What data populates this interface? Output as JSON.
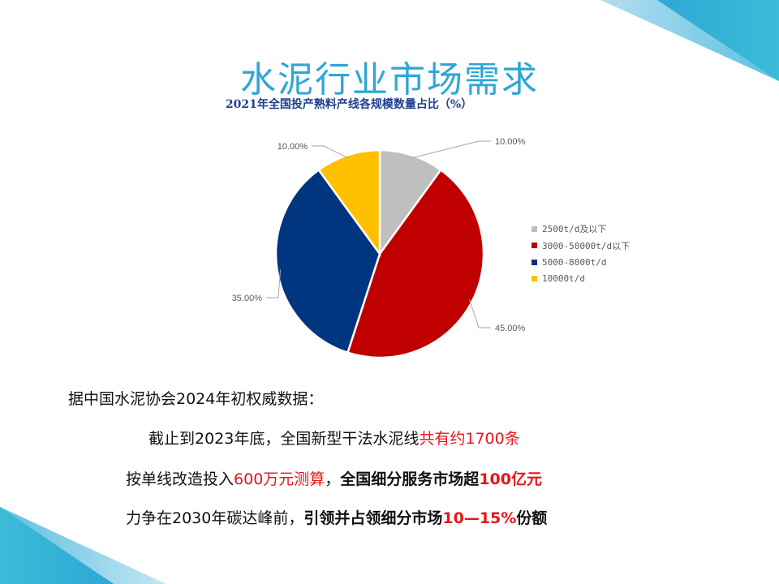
{
  "slide": {
    "title": "水泥行业市场需求",
    "accent_color": "#2ea6d6"
  },
  "chart_data": {
    "type": "pie",
    "title": "2021年全国投产熟料产线各规模数量占比（%）",
    "start": "top",
    "direction": "clockwise",
    "legend_position": "right",
    "slices": [
      {
        "label": "2500t/d及以下",
        "value": 10.0,
        "data_label": "10.00%",
        "color": "#bfbfbf"
      },
      {
        "label": "3000-50000t/d以下",
        "value": 45.0,
        "data_label": "45.00%",
        "color": "#c00000"
      },
      {
        "label": "5000-8000t/d",
        "value": 35.0,
        "data_label": "35.00%",
        "color": "#003580"
      },
      {
        "label": "10000t/d",
        "value": 10.0,
        "data_label": "10.00%",
        "color": "#ffc000"
      }
    ]
  },
  "body": {
    "intro": "据中国水泥协会2024年初权威数据：",
    "line1": [
      {
        "text": "截止到2023年底，全国新型干法水泥线",
        "style": "normal"
      },
      {
        "text": "共有约1700条",
        "style": "red"
      }
    ],
    "line2": [
      {
        "text": "按单线改造投入",
        "style": "normal"
      },
      {
        "text": "600万元测算",
        "style": "red"
      },
      {
        "text": "，",
        "style": "normal"
      },
      {
        "text": "全国细分服务市场超",
        "style": "bold"
      },
      {
        "text": "100亿元",
        "style": "red-bold"
      }
    ],
    "line3": [
      {
        "text": "力争在2030年碳达峰前，",
        "style": "normal"
      },
      {
        "text": "引领并占领细分市场",
        "style": "bold"
      },
      {
        "text": "10—15%",
        "style": "red-bold"
      },
      {
        "text": "份额",
        "style": "bold"
      }
    ]
  }
}
